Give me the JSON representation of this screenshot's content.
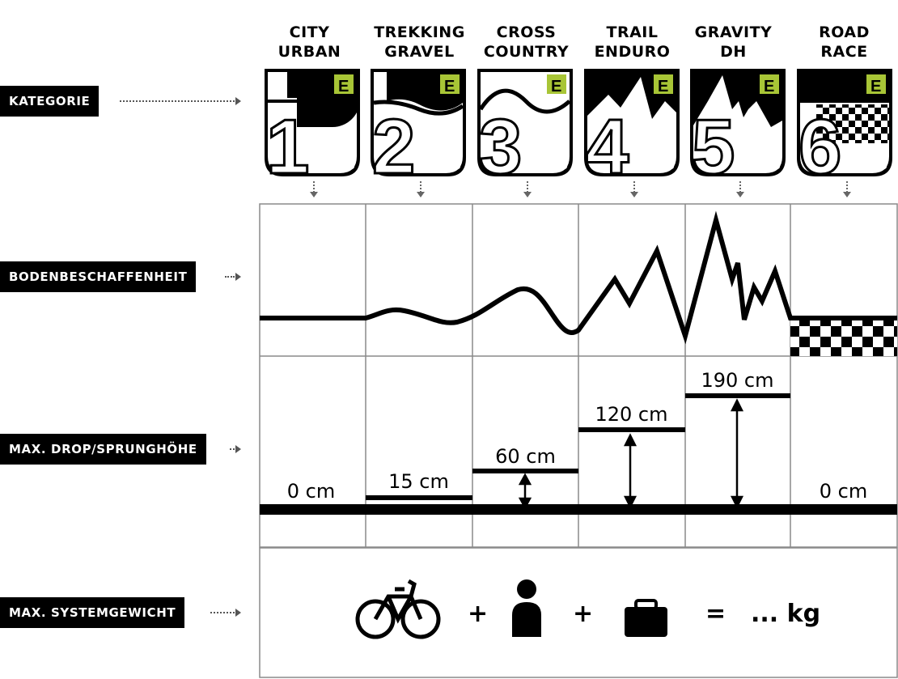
{
  "columns": [
    {
      "line1": "CITY",
      "line2": "URBAN",
      "number": "1",
      "weight": "... kg",
      "drop": "0 cm"
    },
    {
      "line1": "TREKKING",
      "line2": "GRAVEL",
      "number": "2",
      "weight": "... kg",
      "drop": "15 cm"
    },
    {
      "line1": "CROSS",
      "line2": "COUNTRY",
      "number": "3",
      "weight": "... kg",
      "drop": "60 cm"
    },
    {
      "line1": "TRAIL",
      "line2": "ENDURO",
      "number": "4",
      "weight": "... kg",
      "drop": "120 cm"
    },
    {
      "line1": "GRAVITY",
      "line2": "DH",
      "number": "5",
      "weight": "... kg",
      "drop": "190 cm"
    },
    {
      "line1": "ROAD",
      "line2": "RACE",
      "number": "6",
      "weight": "... kg",
      "drop": "0 cm"
    }
  ],
  "rows": {
    "kategorie": "KATEGORIE",
    "boden": "BODENBESCHAFFENHEIT",
    "drop": "MAX. DROP/SPRUNGHÖHE",
    "gewicht": "MAX. SYSTEMGEWICHT"
  },
  "badge_letter": "E",
  "badge_color": "#a8c536",
  "equation": {
    "plus1": "+",
    "plus2": "+",
    "equals": "=",
    "result": "... kg"
  },
  "icons": [
    "bicycle-icon",
    "person-icon",
    "luggage-icon"
  ]
}
